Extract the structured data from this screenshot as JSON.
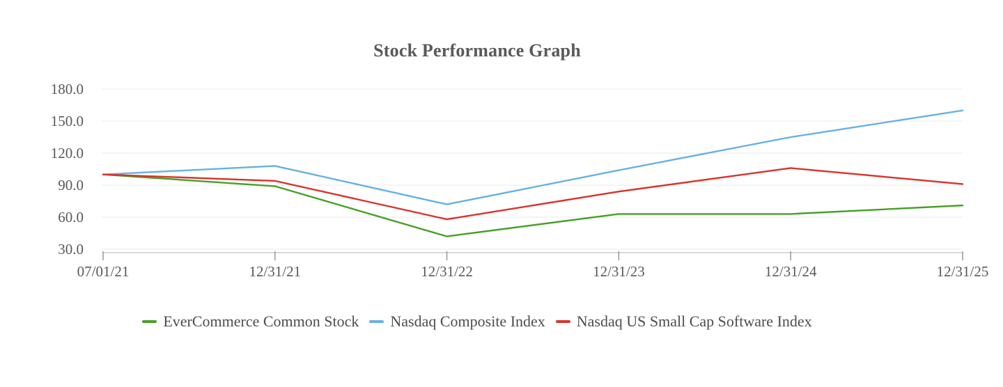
{
  "chart_data": {
    "type": "line",
    "title": "Stock Performance Graph",
    "categories": [
      "07/01/21",
      "12/31/21",
      "12/31/22",
      "12/31/23",
      "12/31/24",
      "12/31/25"
    ],
    "series": [
      {
        "name": "EverCommerce Common Stock",
        "color": "#47a025",
        "values": [
          100,
          89,
          42,
          63,
          63,
          71
        ]
      },
      {
        "name": "Nasdaq Composite Index",
        "color": "#66b1e3",
        "values": [
          100,
          108,
          72,
          104,
          135,
          160
        ]
      },
      {
        "name": "Nasdaq US Small Cap Software Index",
        "color": "#d8342c",
        "values": [
          100,
          94,
          58,
          84,
          106,
          91
        ]
      }
    ],
    "xlabel": "",
    "ylabel": "",
    "ylim": [
      30,
      180
    ],
    "ytick_step": 30,
    "ytick_labels": [
      "30.0",
      "60.0",
      "90.0",
      "120.0",
      "150.0",
      "180.0"
    ],
    "grid": "horizontal",
    "legend_position": "bottom",
    "text_color": "#595959",
    "gridline_color": "#e8e8e8",
    "axis_line_color": "#cccccc",
    "tick_color": "#999999"
  }
}
